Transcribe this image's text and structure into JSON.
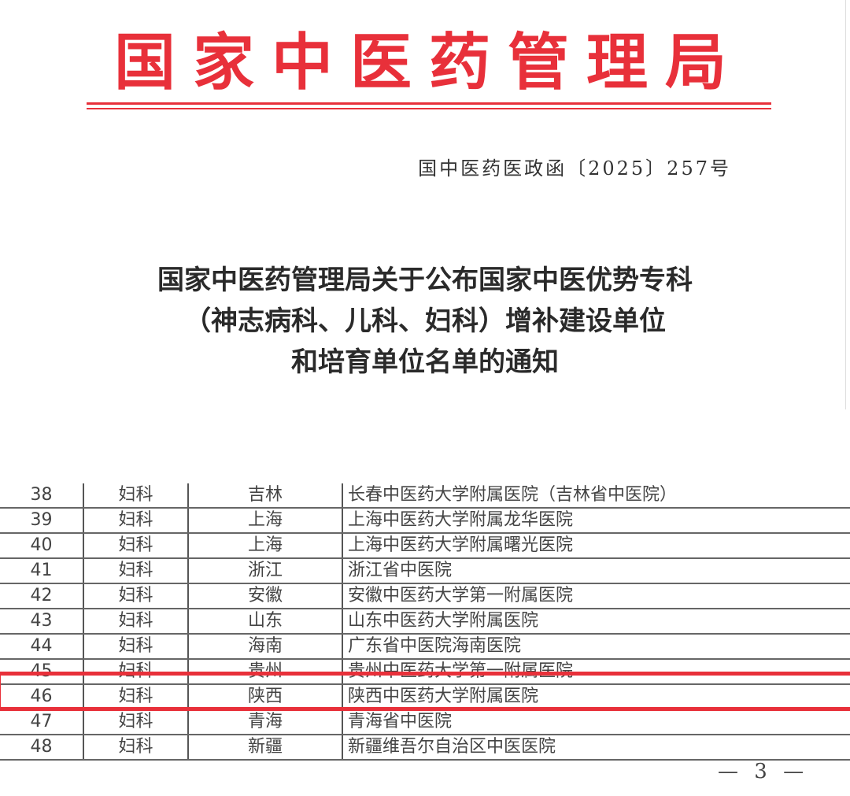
{
  "header": {
    "agency": "国家中医药管理局",
    "doc_number": "国中医药医政函〔2025〕257号",
    "title_lines": [
      "国家中医药管理局关于公布国家中医优势专科",
      "（神志病科、儿科、妇科）增补建设单位",
      "和培育单位名单的通知"
    ],
    "accent_color": "#e8303a"
  },
  "table": {
    "rows": [
      {
        "no": "38",
        "dept": "妇科",
        "prov": "吉林",
        "hosp": "长春中医药大学附属医院（吉林省中医院）"
      },
      {
        "no": "39",
        "dept": "妇科",
        "prov": "上海",
        "hosp": "上海中医药大学附属龙华医院"
      },
      {
        "no": "40",
        "dept": "妇科",
        "prov": "上海",
        "hosp": "上海中医药大学附属曙光医院"
      },
      {
        "no": "41",
        "dept": "妇科",
        "prov": "浙江",
        "hosp": "浙江省中医院"
      },
      {
        "no": "42",
        "dept": "妇科",
        "prov": "安徽",
        "hosp": "安徽中医药大学第一附属医院"
      },
      {
        "no": "43",
        "dept": "妇科",
        "prov": "山东",
        "hosp": "山东中医药大学附属医院"
      },
      {
        "no": "44",
        "dept": "妇科",
        "prov": "海南",
        "hosp": "广东省中医院海南医院"
      },
      {
        "no": "45",
        "dept": "妇科",
        "prov": "贵州",
        "hosp": "贵州中医药大学第一附属医院"
      },
      {
        "no": "46",
        "dept": "妇科",
        "prov": "陕西",
        "hosp": "陕西中医药大学附属医院"
      },
      {
        "no": "47",
        "dept": "妇科",
        "prov": "青海",
        "hosp": "青海省中医院"
      },
      {
        "no": "48",
        "dept": "妇科",
        "prov": "新疆",
        "hosp": "新疆维吾尔自治区中医医院"
      }
    ],
    "highlighted_row": "46"
  },
  "footer": {
    "page": "— 3 —"
  }
}
